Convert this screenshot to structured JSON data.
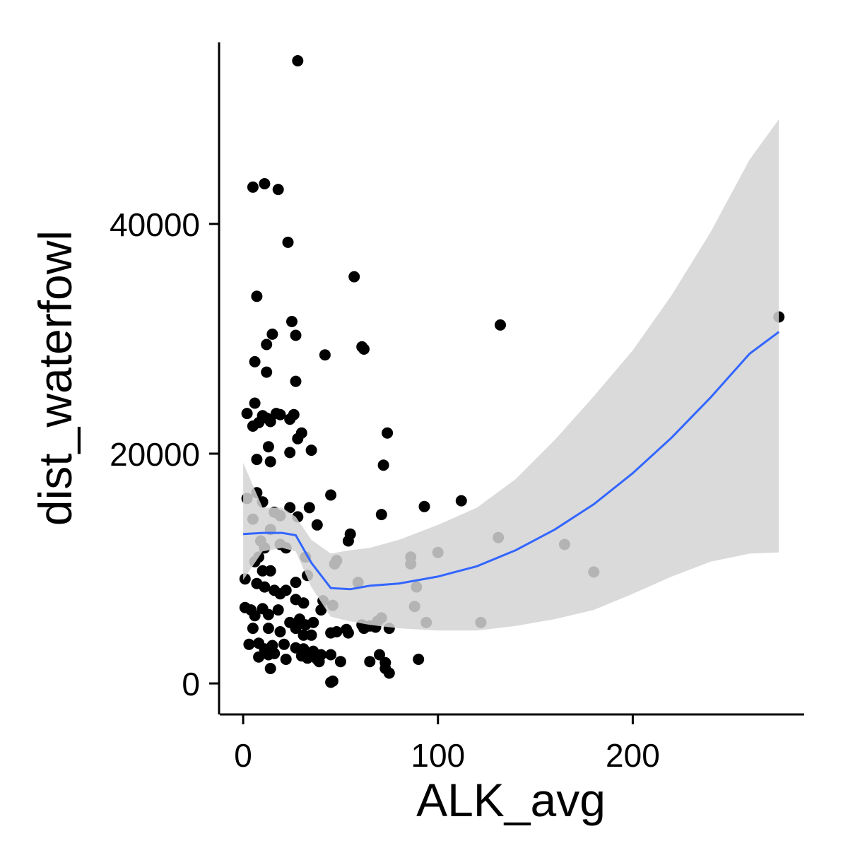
{
  "chart_data": {
    "type": "scatter",
    "xlabel": "ALK_avg",
    "ylabel": "dist_waterfowl",
    "xlim": [
      -12,
      288
    ],
    "ylim": [
      -2700,
      55800
    ],
    "x_ticks": [
      0,
      100,
      200
    ],
    "x_tick_labels": [
      "0",
      "100",
      "200"
    ],
    "y_ticks": [
      0,
      20000,
      40000
    ],
    "y_tick_labels": [
      "0",
      "20000",
      "40000"
    ],
    "grid": false,
    "legend": "none",
    "colors": {
      "points": "#000000",
      "smooth_line": "#3366ff",
      "ribbon": "#d3d3d3"
    },
    "points": [
      [
        28,
        54200
      ],
      [
        5,
        43200
      ],
      [
        11,
        43500
      ],
      [
        18,
        43000
      ],
      [
        23,
        38400
      ],
      [
        57,
        35400
      ],
      [
        7,
        33700
      ],
      [
        25,
        31500
      ],
      [
        27,
        30300
      ],
      [
        12,
        29500
      ],
      [
        15,
        30400
      ],
      [
        61,
        29300
      ],
      [
        62,
        29100
      ],
      [
        42,
        28600
      ],
      [
        6,
        28000
      ],
      [
        12,
        27100
      ],
      [
        27,
        26300
      ],
      [
        2,
        23500
      ],
      [
        5,
        22400
      ],
      [
        6,
        24400
      ],
      [
        8,
        22700
      ],
      [
        10,
        23300
      ],
      [
        12,
        23100
      ],
      [
        14,
        22800
      ],
      [
        17,
        23500
      ],
      [
        19,
        23400
      ],
      [
        24,
        23000
      ],
      [
        26,
        23400
      ],
      [
        28,
        21300
      ],
      [
        30,
        21800
      ],
      [
        74,
        21800
      ],
      [
        13,
        20600
      ],
      [
        24,
        20100
      ],
      [
        14,
        19300
      ],
      [
        7,
        19500
      ],
      [
        35,
        20300
      ],
      [
        72,
        19000
      ],
      [
        2,
        16100
      ],
      [
        7,
        16600
      ],
      [
        10,
        15800
      ],
      [
        16,
        14900
      ],
      [
        19,
        14600
      ],
      [
        24,
        15300
      ],
      [
        34,
        15300
      ],
      [
        45,
        16400
      ],
      [
        5,
        14300
      ],
      [
        14,
        13400
      ],
      [
        28,
        14500
      ],
      [
        38,
        13800
      ],
      [
        93,
        15400
      ],
      [
        112,
        15900
      ],
      [
        71,
        14700
      ],
      [
        9,
        12400
      ],
      [
        19,
        12100
      ],
      [
        55,
        13000
      ],
      [
        54,
        12400
      ],
      [
        131,
        12700
      ],
      [
        165,
        12100
      ],
      [
        8,
        11000
      ],
      [
        11,
        11800
      ],
      [
        22,
        11800
      ],
      [
        32,
        11000
      ],
      [
        48,
        10700
      ],
      [
        47,
        10400
      ],
      [
        86,
        11000
      ],
      [
        86,
        10400
      ],
      [
        100,
        11400
      ],
      [
        132,
        31200
      ],
      [
        275,
        31900
      ],
      [
        180,
        9700
      ],
      [
        1,
        9100
      ],
      [
        6,
        10600
      ],
      [
        10,
        9800
      ],
      [
        14,
        9800
      ],
      [
        27,
        8800
      ],
      [
        33,
        9400
      ],
      [
        59,
        8800
      ],
      [
        7,
        8700
      ],
      [
        11,
        8400
      ],
      [
        16,
        8100
      ],
      [
        19,
        7800
      ],
      [
        22,
        8100
      ],
      [
        27,
        7300
      ],
      [
        31,
        7000
      ],
      [
        41,
        7200
      ],
      [
        40,
        6400
      ],
      [
        46,
        6800
      ],
      [
        89,
        8400
      ],
      [
        88,
        6700
      ],
      [
        1,
        6600
      ],
      [
        4,
        6400
      ],
      [
        6,
        5900
      ],
      [
        10,
        6500
      ],
      [
        13,
        6000
      ],
      [
        18,
        6400
      ],
      [
        24,
        5300
      ],
      [
        29,
        5600
      ],
      [
        32,
        5100
      ],
      [
        36,
        5300
      ],
      [
        61,
        5100
      ],
      [
        69,
        5400
      ],
      [
        71,
        5700
      ],
      [
        94,
        5300
      ],
      [
        122,
        5300
      ],
      [
        5,
        4800
      ],
      [
        13,
        4800
      ],
      [
        19,
        4500
      ],
      [
        27,
        4800
      ],
      [
        31,
        4200
      ],
      [
        35,
        4200
      ],
      [
        45,
        4400
      ],
      [
        48,
        4500
      ],
      [
        53,
        4700
      ],
      [
        54,
        4400
      ],
      [
        62,
        4800
      ],
      [
        65,
        5000
      ],
      [
        68,
        4900
      ],
      [
        75,
        4800
      ],
      [
        3,
        3400
      ],
      [
        8,
        3500
      ],
      [
        11,
        3000
      ],
      [
        15,
        3300
      ],
      [
        21,
        3400
      ],
      [
        27,
        3100
      ],
      [
        31,
        3000
      ],
      [
        36,
        2800
      ],
      [
        40,
        2500
      ],
      [
        8,
        2300
      ],
      [
        13,
        2500
      ],
      [
        16,
        2600
      ],
      [
        22,
        2100
      ],
      [
        30,
        2400
      ],
      [
        33,
        2200
      ],
      [
        38,
        2100
      ],
      [
        45,
        2500
      ],
      [
        50,
        1900
      ],
      [
        65,
        1900
      ],
      [
        70,
        2500
      ],
      [
        73,
        1800
      ],
      [
        73,
        1300
      ],
      [
        75,
        900
      ],
      [
        14,
        1300
      ],
      [
        39,
        1900
      ],
      [
        90,
        2100
      ],
      [
        45,
        100
      ],
      [
        46,
        200
      ]
    ],
    "smooth": [
      {
        "x": 0,
        "y": 13000,
        "lo": 9000,
        "hi": 19200
      },
      {
        "x": 10,
        "y": 13100,
        "lo": 11500,
        "hi": 15300
      },
      {
        "x": 20,
        "y": 13100,
        "lo": 11800,
        "hi": 15300
      },
      {
        "x": 27,
        "y": 12900,
        "lo": 11500,
        "hi": 14500
      },
      {
        "x": 35,
        "y": 10500,
        "lo": 8400,
        "hi": 12500
      },
      {
        "x": 45,
        "y": 8300,
        "lo": 5800,
        "hi": 11300
      },
      {
        "x": 55,
        "y": 8200,
        "lo": 5400,
        "hi": 11600
      },
      {
        "x": 65,
        "y": 8500,
        "lo": 5100,
        "hi": 11800
      },
      {
        "x": 80,
        "y": 8700,
        "lo": 4800,
        "hi": 12500
      },
      {
        "x": 100,
        "y": 9300,
        "lo": 4600,
        "hi": 13800
      },
      {
        "x": 120,
        "y": 10200,
        "lo": 4600,
        "hi": 15300
      },
      {
        "x": 140,
        "y": 11600,
        "lo": 5000,
        "hi": 17800
      },
      {
        "x": 160,
        "y": 13400,
        "lo": 5600,
        "hi": 21200
      },
      {
        "x": 180,
        "y": 15600,
        "lo": 6400,
        "hi": 25000
      },
      {
        "x": 200,
        "y": 18300,
        "lo": 7800,
        "hi": 29000
      },
      {
        "x": 220,
        "y": 21400,
        "lo": 9300,
        "hi": 33800
      },
      {
        "x": 240,
        "y": 24900,
        "lo": 10600,
        "hi": 39300
      },
      {
        "x": 260,
        "y": 28700,
        "lo": 11300,
        "hi": 45600
      },
      {
        "x": 275,
        "y": 30600,
        "lo": 11400,
        "hi": 49100
      }
    ]
  }
}
